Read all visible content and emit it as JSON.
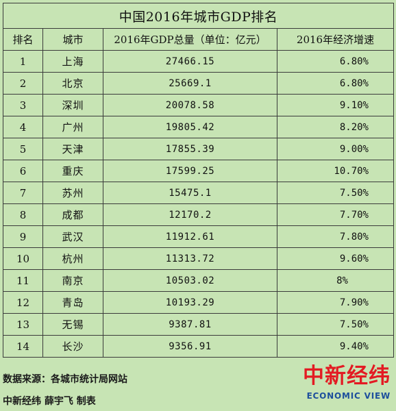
{
  "table": {
    "title": "中国2016年城市GDP排名",
    "headers": [
      "排名",
      "城市",
      "2016年GDP总量（单位：亿元）",
      "2016年经济增速"
    ],
    "rows": [
      {
        "rank": "1",
        "city": "上海",
        "gdp": "27466.15",
        "growth": "6.80%"
      },
      {
        "rank": "2",
        "city": "北京",
        "gdp": "25669.1",
        "growth": "6.80%"
      },
      {
        "rank": "3",
        "city": "深圳",
        "gdp": "20078.58",
        "growth": "9.10%"
      },
      {
        "rank": "4",
        "city": "广州",
        "gdp": "19805.42",
        "growth": "8.20%"
      },
      {
        "rank": "5",
        "city": "天津",
        "gdp": "17855.39",
        "growth": "9.00%"
      },
      {
        "rank": "6",
        "city": "重庆",
        "gdp": "17599.25",
        "growth": "10.70%"
      },
      {
        "rank": "7",
        "city": "苏州",
        "gdp": "15475.1",
        "growth": "7.50%"
      },
      {
        "rank": "8",
        "city": "成都",
        "gdp": "12170.2",
        "growth": "7.70%"
      },
      {
        "rank": "9",
        "city": "武汉",
        "gdp": "11912.61",
        "growth": "7.80%"
      },
      {
        "rank": "10",
        "city": "杭州",
        "gdp": "11313.72",
        "growth": "9.60%"
      },
      {
        "rank": "11",
        "city": "南京",
        "gdp": "10503.02",
        "growth": "8%"
      },
      {
        "rank": "12",
        "city": "青岛",
        "gdp": "10193.29",
        "growth": "7.90%"
      },
      {
        "rank": "13",
        "city": "无锡",
        "gdp": "9387.81",
        "growth": "7.50%"
      },
      {
        "rank": "14",
        "city": "长沙",
        "gdp": "9356.91",
        "growth": "9.40%"
      }
    ]
  },
  "footer": {
    "source": "数据来源：各城市统计局网站",
    "credit": "中新经纬 薛宇飞 制表"
  },
  "logo": {
    "cn": "中新经纬",
    "en": "ECONOMIC VIEW",
    "cn_color": "#e31b23",
    "en_color": "#1d4f9c"
  },
  "colors": {
    "background": "#c7e4b4",
    "grid_line": "#3a3a3a"
  }
}
